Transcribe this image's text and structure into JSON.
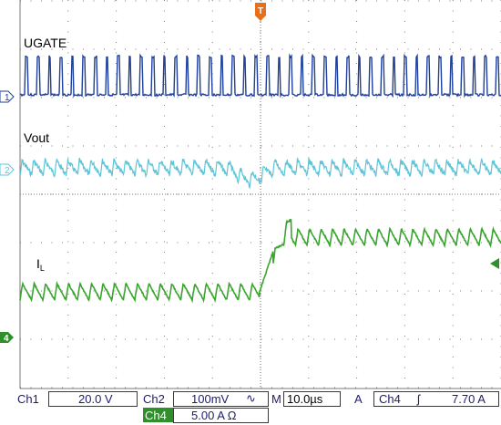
{
  "channels": {
    "ch1": {
      "marker": "1",
      "label": "UGATE",
      "color": "#1f3f9a"
    },
    "ch2": {
      "marker": "2",
      "label": "Vout",
      "color": "#5fc4d8"
    },
    "ch4": {
      "marker": "4",
      "label_main": "I",
      "label_sub": "L",
      "color": "#3aa52e"
    }
  },
  "trigger": {
    "marker": "T",
    "color": "#e8701a"
  },
  "status_bar": {
    "ch1_name": "Ch1",
    "ch1_scale": "20.0 V",
    "ch2_name": "Ch2",
    "ch2_scale": "100mV",
    "ch2_coupling": "∿",
    "m_label": "M",
    "timebase": "10.0µs",
    "a_label": "A",
    "trig_source": "Ch4",
    "trig_slope": "ʃ",
    "trig_level": "7.70 A",
    "ch4_name": "Ch4",
    "ch4_scale": "5.00 A Ω"
  }
}
